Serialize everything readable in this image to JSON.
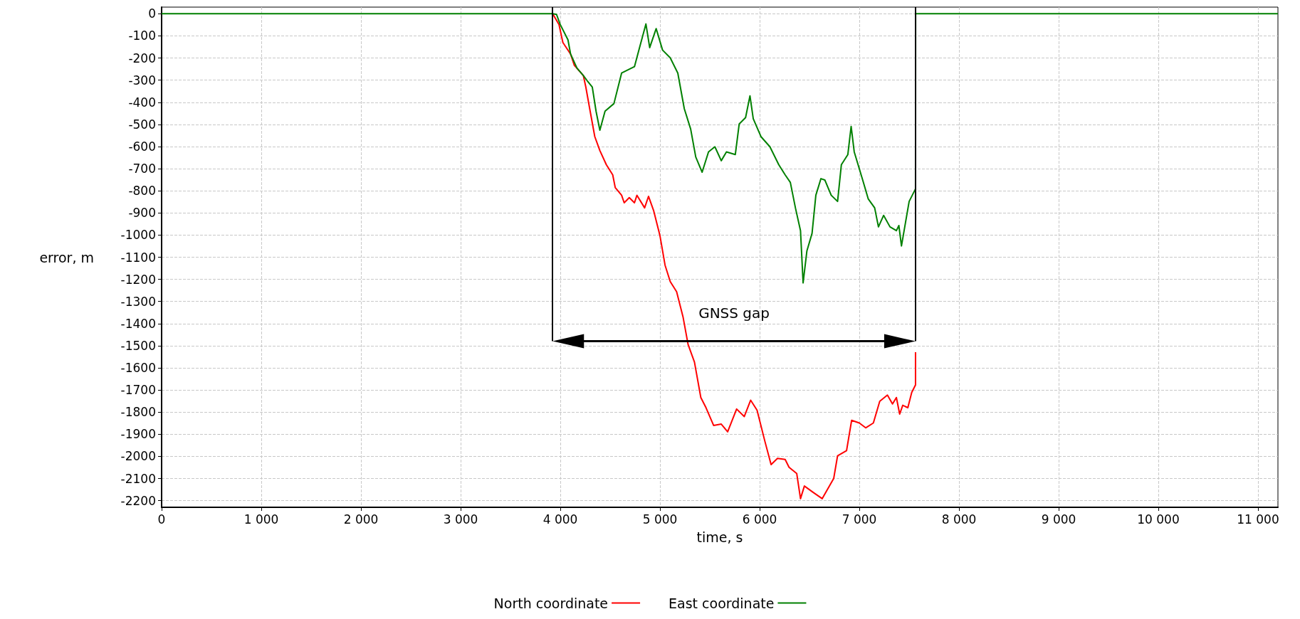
{
  "chart_data": {
    "type": "line",
    "xlabel": "time, s",
    "ylabel": "error, m",
    "xlim": [
      0,
      11200
    ],
    "ylim": [
      -2230,
      30
    ],
    "xticks": [
      0,
      {
        "value": 1000,
        "label": "1 000"
      },
      {
        "value": 2000,
        "label": "2 000"
      },
      {
        "value": 3000,
        "label": "3 000"
      },
      {
        "value": 4000,
        "label": "4 000"
      },
      {
        "value": 5000,
        "label": "5 000"
      },
      {
        "value": 6000,
        "label": "6 000"
      },
      {
        "value": 7000,
        "label": "7 000"
      },
      {
        "value": 8000,
        "label": "8 000"
      },
      {
        "value": 9000,
        "label": "9 000"
      },
      {
        "value": 10000,
        "label": "10 000"
      },
      {
        "value": 11000,
        "label": "11 000"
      }
    ],
    "yticks": [
      0,
      -100,
      -200,
      -300,
      -400,
      -500,
      -600,
      -700,
      -800,
      -900,
      -1000,
      -1100,
      -1200,
      -1300,
      -1400,
      -1500,
      -1600,
      -1700,
      -1800,
      -1900,
      -2000,
      -2100,
      -2200
    ],
    "grid": true,
    "legend": "bottom",
    "marker": "none",
    "line_style": "solid",
    "ref_lines": [
      {
        "axis": "x",
        "value": 3923,
        "color": "#000000"
      },
      {
        "axis": "x",
        "value": 7564,
        "color": "#000000"
      }
    ],
    "annotations": [
      "GNSS gap"
    ],
    "series": [
      {
        "name": "North coordinate",
        "color": "#ff0000",
        "x": [
          3923,
          3987,
          4026,
          4103,
          4141,
          4231,
          4256,
          4295,
          4346,
          4397,
          4462,
          4526,
          4551,
          4615,
          4641,
          4692,
          4744,
          4769,
          4846,
          4885,
          4936,
          5000,
          5051,
          5103,
          5167,
          5231,
          5282,
          5346,
          5410,
          5462,
          5538,
          5615,
          5679,
          5769,
          5846,
          5910,
          5974,
          6051,
          6115,
          6179,
          6256,
          6295,
          6372,
          6410,
          6449,
          6538,
          6628,
          6743,
          6782,
          6872,
          6923,
          7000,
          7064,
          7141,
          7205,
          7282,
          7333,
          7372,
          7405,
          7436,
          7487,
          7526,
          7564,
          7564
        ],
        "values": [
          0,
          -49,
          -130,
          -182,
          -233,
          -279,
          -331,
          -429,
          -555,
          -618,
          -682,
          -728,
          -785,
          -820,
          -854,
          -831,
          -854,
          -820,
          -877,
          -825,
          -889,
          -1003,
          -1136,
          -1210,
          -1256,
          -1369,
          -1494,
          -1574,
          -1734,
          -1780,
          -1860,
          -1854,
          -1889,
          -1786,
          -1820,
          -1746,
          -1791,
          -1929,
          -2037,
          -2009,
          -2014,
          -2049,
          -2077,
          -2191,
          -2134,
          -2163,
          -2191,
          -2100,
          -1997,
          -1974,
          -1837,
          -1849,
          -1871,
          -1849,
          -1751,
          -1723,
          -1763,
          -1734,
          -1809,
          -1769,
          -1780,
          -1711,
          -1677,
          -1529
        ]
      },
      {
        "name": "East coordinate",
        "color": "#008000",
        "x": [
          0,
          3923,
          3962,
          4000,
          4077,
          4103,
          4167,
          4231,
          4269,
          4321,
          4359,
          4397,
          4449,
          4538,
          4615,
          4744,
          4795,
          4859,
          4897,
          4962,
          5026,
          5103,
          5179,
          5244,
          5308,
          5359,
          5423,
          5487,
          5551,
          5615,
          5667,
          5756,
          5795,
          5859,
          5903,
          5936,
          6013,
          6103,
          6192,
          6256,
          6308,
          6359,
          6410,
          6436,
          6474,
          6526,
          6564,
          6615,
          6654,
          6718,
          6782,
          6820,
          6885,
          6918,
          6949,
          7026,
          7090,
          7154,
          7192,
          7244,
          7308,
          7372,
          7397,
          7423,
          7500,
          7564,
          7565,
          11200
        ],
        "values": [
          0,
          0,
          -3,
          -49,
          -118,
          -182,
          -245,
          -279,
          -302,
          -331,
          -441,
          -526,
          -440,
          -406,
          -268,
          -239,
          -153,
          -46,
          -153,
          -67,
          -164,
          -199,
          -268,
          -429,
          -521,
          -647,
          -716,
          -624,
          -601,
          -664,
          -624,
          -636,
          -498,
          -469,
          -371,
          -474,
          -555,
          -601,
          -682,
          -728,
          -762,
          -877,
          -980,
          -1216,
          -1072,
          -992,
          -820,
          -745,
          -751,
          -820,
          -848,
          -682,
          -636,
          -509,
          -624,
          -739,
          -837,
          -877,
          -963,
          -911,
          -963,
          -980,
          -957,
          -1049,
          -848,
          -791,
          0,
          0
        ]
      }
    ]
  }
}
